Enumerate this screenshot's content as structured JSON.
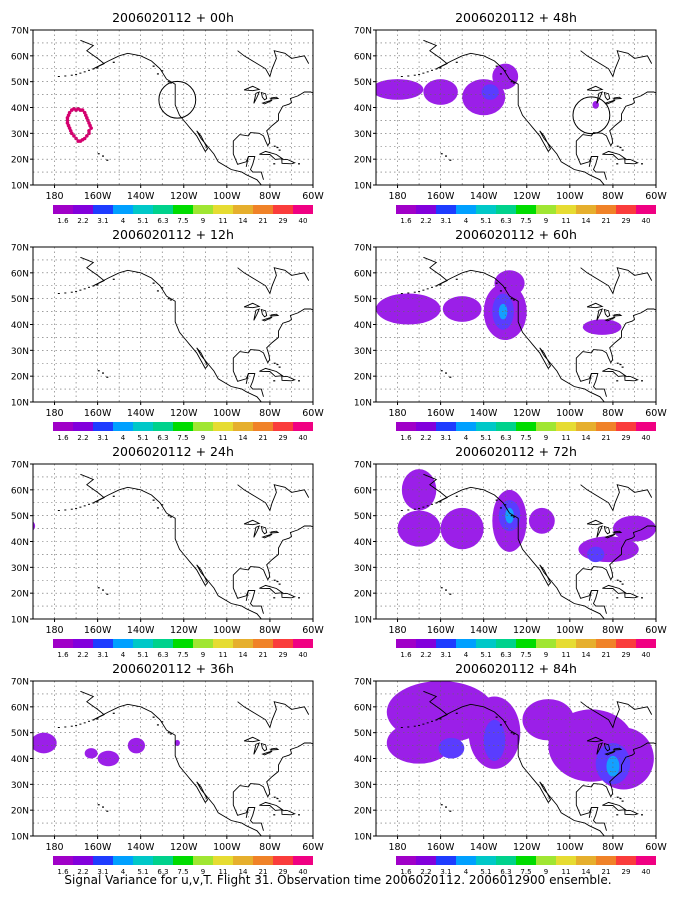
{
  "chart_data": {
    "type": "heatmap",
    "caption": "Signal Variance for u,v,T. Flight 31. Observation time 2006020112. 2006012900 ensemble.",
    "panel_titles": [
      "2006020112 + 00h",
      "2006020112 + 48h",
      "2006020112 + 12h",
      "2006020112 + 60h",
      "2006020112 + 24h",
      "2006020112 + 72h",
      "2006020112 + 36h",
      "2006020112 + 84h"
    ],
    "lon_ticks": [
      "180",
      "160W",
      "140W",
      "120W",
      "100W",
      "80W",
      "60W"
    ],
    "lat_ticks": [
      "10N",
      "20N",
      "30N",
      "40N",
      "50N",
      "60N",
      "70N"
    ],
    "xlim": [
      -190,
      -60
    ],
    "ylim": [
      10,
      70
    ],
    "grid": true,
    "colorbar": {
      "labels": [
        "1.6",
        "2.2",
        "3.1",
        "4",
        "5.1",
        "6.3",
        "7.5",
        "9",
        "11",
        "14",
        "21",
        "29",
        "40"
      ],
      "colors": [
        "#a000c8",
        "#8200dc",
        "#1e3cff",
        "#00a0ff",
        "#00c8c8",
        "#00d28c",
        "#00dc00",
        "#a0e632",
        "#e6dc32",
        "#e6af2d",
        "#f08228",
        "#fa3c3c",
        "#f00082"
      ]
    },
    "observation_circles": [
      {
        "panel": 0,
        "lon": -123,
        "lat": 43,
        "radius_deg": 9
      },
      {
        "panel": 1,
        "lon": -90,
        "lat": 37,
        "radius_deg": 9
      }
    ],
    "panels": [
      {
        "blobs": [],
        "dots": [
          [
            -172,
            39
          ],
          [
            -170,
            39
          ],
          [
            -168,
            39
          ],
          [
            -166,
            38
          ],
          [
            -165,
            36
          ],
          [
            -164,
            34
          ],
          [
            -163,
            32
          ],
          [
            -164,
            30
          ],
          [
            -166,
            28
          ],
          [
            -168,
            27
          ],
          [
            -170,
            28
          ],
          [
            -172,
            30
          ],
          [
            -173,
            32
          ],
          [
            -174,
            34
          ],
          [
            -174,
            36
          ],
          [
            -173,
            38
          ],
          [
            -171,
            39.5
          ],
          [
            -169,
            39.5
          ],
          [
            -167,
            39
          ],
          [
            -165.5,
            37
          ],
          [
            -164.5,
            35
          ],
          [
            -163.5,
            33
          ],
          [
            -164,
            31
          ],
          [
            -165,
            29
          ],
          [
            -167,
            27.5
          ],
          [
            -169,
            27
          ],
          [
            -171,
            29
          ],
          [
            -172.5,
            31
          ],
          [
            -173.5,
            33
          ],
          [
            -174,
            35
          ],
          [
            -173.5,
            37
          ]
        ]
      },
      {
        "blobs": [
          {
            "lon": -180,
            "lat": 47,
            "rx": 12,
            "ry": 4,
            "level": 1
          },
          {
            "lon": -160,
            "lat": 46,
            "rx": 8,
            "ry": 5,
            "level": 1
          },
          {
            "lon": -140,
            "lat": 44,
            "rx": 10,
            "ry": 7,
            "level": 1
          },
          {
            "lon": -130,
            "lat": 52,
            "rx": 6,
            "ry": 5,
            "level": 1
          },
          {
            "lon": -137,
            "lat": 46,
            "rx": 4,
            "ry": 3,
            "level": 2
          },
          {
            "lon": -88,
            "lat": 41,
            "rx": 1.5,
            "ry": 1.5,
            "level": 1
          }
        ],
        "dots": []
      },
      {
        "blobs": [],
        "dots": []
      },
      {
        "blobs": [
          {
            "lon": -175,
            "lat": 46,
            "rx": 15,
            "ry": 6,
            "level": 1
          },
          {
            "lon": -150,
            "lat": 46,
            "rx": 9,
            "ry": 5,
            "level": 1
          },
          {
            "lon": -130,
            "lat": 45,
            "rx": 10,
            "ry": 11,
            "level": 1
          },
          {
            "lon": -128,
            "lat": 56,
            "rx": 7,
            "ry": 5,
            "level": 1
          },
          {
            "lon": -131,
            "lat": 45,
            "rx": 5,
            "ry": 7,
            "level": 2
          },
          {
            "lon": -131,
            "lat": 45,
            "rx": 2,
            "ry": 3,
            "level": 3
          },
          {
            "lon": -85,
            "lat": 39,
            "rx": 9,
            "ry": 3,
            "level": 1
          }
        ],
        "dots": []
      },
      {
        "blobs": [
          {
            "lon": -191,
            "lat": 46,
            "rx": 2,
            "ry": 2,
            "level": 1
          }
        ],
        "dots": []
      },
      {
        "blobs": [
          {
            "lon": -170,
            "lat": 60,
            "rx": 8,
            "ry": 8,
            "level": 1
          },
          {
            "lon": -170,
            "lat": 45,
            "rx": 10,
            "ry": 7,
            "level": 1
          },
          {
            "lon": -150,
            "lat": 45,
            "rx": 10,
            "ry": 8,
            "level": 1
          },
          {
            "lon": -128,
            "lat": 48,
            "rx": 8,
            "ry": 12,
            "level": 1
          },
          {
            "lon": -128,
            "lat": 50,
            "rx": 5,
            "ry": 6,
            "level": 2
          },
          {
            "lon": -128,
            "lat": 50,
            "rx": 2,
            "ry": 3,
            "level": 3
          },
          {
            "lon": -113,
            "lat": 48,
            "rx": 6,
            "ry": 5,
            "level": 1
          },
          {
            "lon": -82,
            "lat": 37,
            "rx": 14,
            "ry": 5,
            "level": 1
          },
          {
            "lon": -70,
            "lat": 45,
            "rx": 10,
            "ry": 5,
            "level": 1
          },
          {
            "lon": -88,
            "lat": 35,
            "rx": 4,
            "ry": 3,
            "level": 2
          }
        ],
        "dots": []
      },
      {
        "blobs": [
          {
            "lon": -185,
            "lat": 46,
            "rx": 6,
            "ry": 4,
            "level": 1
          },
          {
            "lon": -163,
            "lat": 42,
            "rx": 3,
            "ry": 2,
            "level": 1
          },
          {
            "lon": -155,
            "lat": 40,
            "rx": 5,
            "ry": 3,
            "level": 1
          },
          {
            "lon": -142,
            "lat": 45,
            "rx": 4,
            "ry": 3,
            "level": 1
          },
          {
            "lon": -123,
            "lat": 46,
            "rx": 1.2,
            "ry": 1.2,
            "level": 1
          }
        ],
        "dots": []
      },
      {
        "blobs": [
          {
            "lon": -160,
            "lat": 58,
            "rx": 25,
            "ry": 12,
            "level": 1
          },
          {
            "lon": -170,
            "lat": 46,
            "rx": 15,
            "ry": 8,
            "level": 1
          },
          {
            "lon": -135,
            "lat": 50,
            "rx": 12,
            "ry": 14,
            "level": 1
          },
          {
            "lon": -110,
            "lat": 55,
            "rx": 12,
            "ry": 8,
            "level": 1
          },
          {
            "lon": -90,
            "lat": 45,
            "rx": 20,
            "ry": 14,
            "level": 1
          },
          {
            "lon": -75,
            "lat": 40,
            "rx": 14,
            "ry": 12,
            "level": 1
          },
          {
            "lon": -155,
            "lat": 44,
            "rx": 6,
            "ry": 4,
            "level": 2
          },
          {
            "lon": -135,
            "lat": 47,
            "rx": 5,
            "ry": 8,
            "level": 2
          },
          {
            "lon": -80,
            "lat": 38,
            "rx": 8,
            "ry": 8,
            "level": 2
          },
          {
            "lon": -80,
            "lat": 37,
            "rx": 3,
            "ry": 4,
            "level": 3
          }
        ],
        "dots": []
      }
    ]
  }
}
